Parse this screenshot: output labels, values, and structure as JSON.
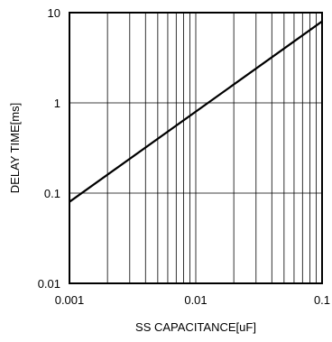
{
  "chart_data": {
    "type": "line",
    "title": "",
    "xlabel": "SS CAPACITANCE[uF]",
    "ylabel": "DELAY TIME[ms]",
    "xscale": "log",
    "yscale": "log",
    "xlim": [
      0.001,
      0.1
    ],
    "ylim": [
      0.01,
      10
    ],
    "x_ticks": [
      "0.001",
      "0.01",
      "0.1"
    ],
    "y_ticks": [
      "0.01",
      "0.1",
      "1",
      "10"
    ],
    "grid": true,
    "legend": "none",
    "series": [
      {
        "x": [
          0.001,
          0.1
        ],
        "y": [
          0.08,
          8.0
        ],
        "color": "#000000"
      }
    ]
  }
}
